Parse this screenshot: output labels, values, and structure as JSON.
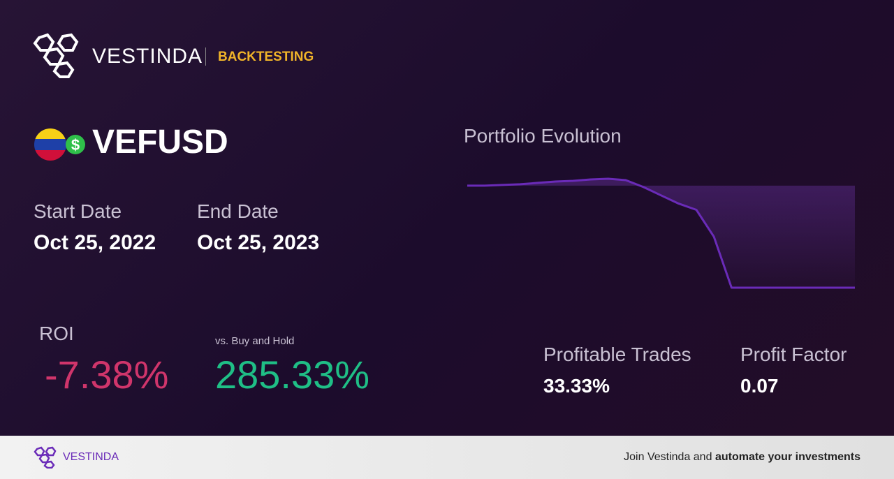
{
  "header": {
    "brand": "VESTINDA",
    "section": "BACKTESTING"
  },
  "symbol": "VEFUSD",
  "start_date": {
    "label": "Start Date",
    "value": "Oct 25, 2022"
  },
  "end_date": {
    "label": "End Date",
    "value": "Oct 25, 2023"
  },
  "roi": {
    "label": "ROI",
    "value": "-7.38%"
  },
  "buy_hold": {
    "label": "vs. Buy and Hold",
    "value": "285.33%"
  },
  "profitable_trades": {
    "label": "Profitable Trades",
    "value": "33.33%"
  },
  "profit_factor": {
    "label": "Profit Factor",
    "value": "0.07"
  },
  "chart_data": {
    "type": "line",
    "title": "Portfolio Evolution",
    "color": "#6a2bb8",
    "values": [
      100,
      100,
      100.05,
      100.1,
      100.2,
      100.3,
      100.35,
      100.45,
      100.5,
      100.4,
      99.9,
      99.3,
      98.7,
      98.25,
      96.3,
      92.62,
      92.62,
      92.62,
      92.62,
      92.62,
      92.62,
      92.62,
      92.62
    ]
  },
  "footer": {
    "brand": "VESTINDA",
    "text": "Join Vestinda and",
    "bold": "automate your investments"
  }
}
